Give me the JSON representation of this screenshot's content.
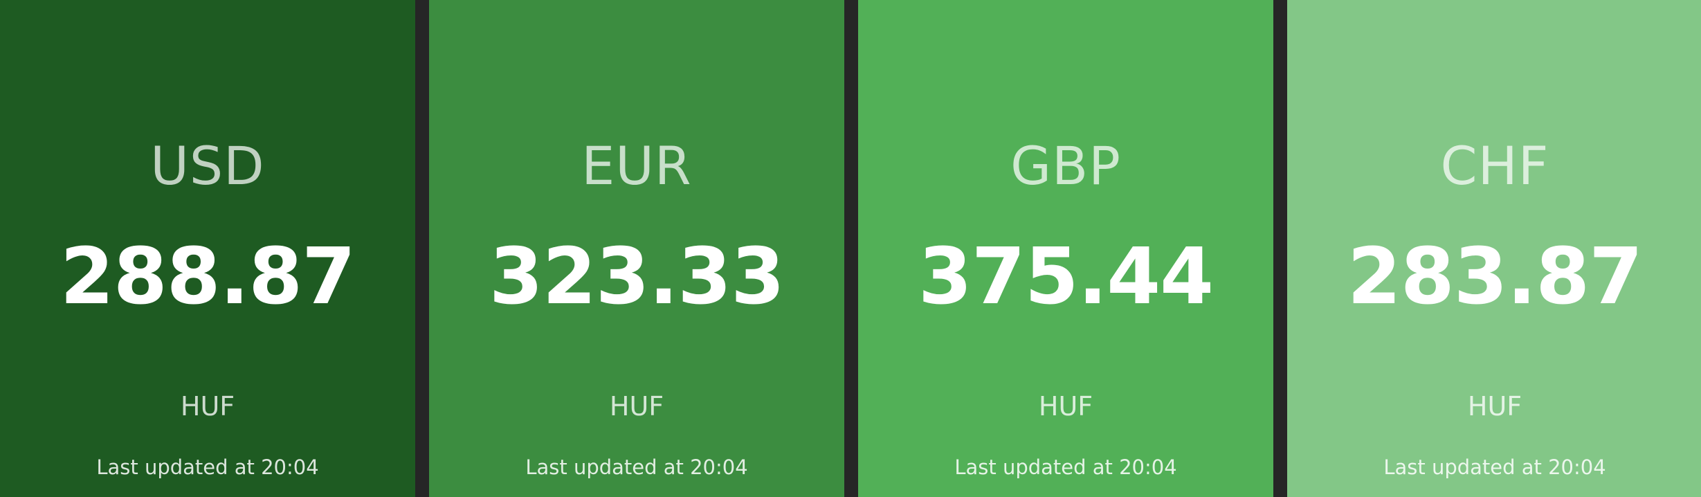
{
  "tiles": [
    {
      "currency": "USD",
      "rate": "288.87",
      "unit": "HUF",
      "updated": "Last updated at 20:04",
      "color": "#1e5b22"
    },
    {
      "currency": "EUR",
      "rate": "323.33",
      "unit": "HUF",
      "updated": "Last updated at 20:04",
      "color": "#3c8d40"
    },
    {
      "currency": "GBP",
      "rate": "375.44",
      "unit": "HUF",
      "updated": "Last updated at 20:04",
      "color": "#52b057"
    },
    {
      "currency": "CHF",
      "rate": "283.87",
      "unit": "HUF",
      "updated": "Last updated at 20:04",
      "color": "#83c787"
    }
  ],
  "colors": {
    "separator": "#262626"
  }
}
